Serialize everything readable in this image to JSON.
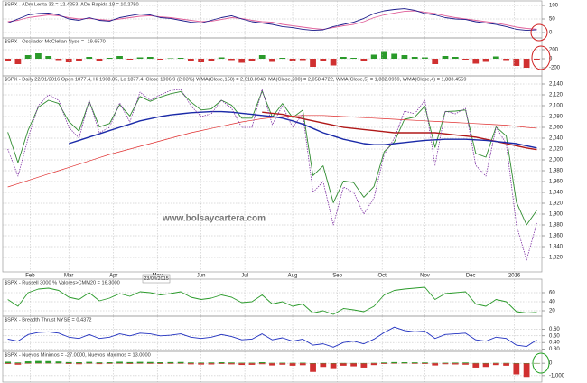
{
  "chart_data": [
    {
      "type": "line",
      "title": "$SPX - ADm Lenta 32 = 12.4253, ADn Rapida 18 = 10.2780",
      "ylim": [
        0,
        100
      ],
      "yticks": [
        100,
        50,
        0
      ],
      "grid": true,
      "series": [
        {
          "color": "#e0609a",
          "values": [
            40,
            45,
            55,
            60,
            65,
            62,
            55,
            50,
            52,
            48,
            45,
            50,
            55,
            60,
            62,
            58,
            55,
            50,
            45,
            40,
            42,
            48,
            55,
            52,
            45,
            40,
            38,
            30,
            25,
            20,
            15,
            12,
            18,
            25,
            30,
            40,
            55,
            65,
            72,
            78,
            80,
            75,
            70,
            62,
            55,
            50,
            45,
            40,
            35,
            28,
            20,
            15,
            12.4253
          ]
        },
        {
          "color": "#1a1a8a",
          "values": [
            35,
            50,
            65,
            70,
            72,
            65,
            50,
            45,
            55,
            45,
            42,
            55,
            62,
            68,
            65,
            55,
            52,
            45,
            38,
            35,
            45,
            55,
            62,
            50,
            40,
            35,
            30,
            22,
            18,
            12,
            8,
            10,
            22,
            30,
            38,
            52,
            70,
            80,
            85,
            88,
            82,
            70,
            65,
            55,
            50,
            48,
            40,
            35,
            30,
            22,
            12,
            8,
            10.278
          ]
        }
      ]
    },
    {
      "type": "bar",
      "title": "$SPX - Oscilador McClellan Nyse = -19.6570",
      "ylim": [
        -300,
        300
      ],
      "yticks": [
        200,
        0,
        -200
      ],
      "grid": true,
      "positive_color": "#2a9a2a",
      "negative_color": "#d03030",
      "series": [
        {
          "values": [
            -50,
            -120,
            80,
            120,
            60,
            -30,
            -80,
            -60,
            40,
            -40,
            20,
            60,
            -20,
            30,
            40,
            -20,
            10,
            20,
            -60,
            -80,
            -40,
            30,
            -30,
            -90,
            -40,
            80,
            -70,
            20,
            -60,
            -30,
            -180,
            -40,
            -150,
            40,
            20,
            -60,
            90,
            150,
            110,
            80,
            40,
            30,
            -120,
            60,
            40,
            -20,
            -110,
            -70,
            50,
            -30,
            -160,
            -200,
            -19.657
          ]
        }
      ]
    },
    {
      "type": "line",
      "title": "$SPX - Daily 22/01/2016 Open 1877.4, Hi 1908.85, Lo 1877.4, Close 1906.9 (2.03%) WMA(Close,150) = 2,018.8943, MA(Close,200) = 2,058.4722, WMA(Close,5) = 1,882.0959, WMA(Close,4) = 1,883.4559",
      "ylim": [
        1820,
        2140
      ],
      "yticks": [
        {
          "value": 2140,
          "label": "2,140"
        },
        {
          "value": 2120,
          "label": "2,120"
        },
        {
          "value": 2100,
          "label": "2,100"
        },
        {
          "value": 2080,
          "label": "2,080"
        },
        {
          "value": 2060,
          "label": "2,060"
        },
        {
          "value": 2040,
          "label": "2,040"
        },
        {
          "value": 2020,
          "label": "2,020"
        },
        {
          "value": 2000,
          "label": "2,000"
        },
        {
          "value": 1980,
          "label": "1,980"
        },
        {
          "value": 1960,
          "label": "1,960"
        },
        {
          "value": 1940,
          "label": "1,940"
        },
        {
          "value": 1920,
          "label": "1,920"
        },
        {
          "value": 1900,
          "label": "1,900"
        },
        {
          "value": 1880,
          "label": "1,880"
        },
        {
          "value": 1860,
          "label": "1,860"
        },
        {
          "value": 1840,
          "label": "1,840"
        },
        {
          "value": 1820,
          "label": "1,820"
        }
      ],
      "xticks": [
        {
          "value": 2.2,
          "label": "Feb"
        },
        {
          "value": 6,
          "label": "Mar"
        },
        {
          "value": 10.4,
          "label": "Apr"
        },
        {
          "value": 14.7,
          "label": "May"
        },
        {
          "value": 19,
          "label": "Jun"
        },
        {
          "value": 23.3,
          "label": "Jul"
        },
        {
          "value": 28,
          "label": "Aug"
        },
        {
          "value": 32.4,
          "label": "Sep"
        },
        {
          "value": 36.8,
          "label": "Oct"
        },
        {
          "value": 41,
          "label": "Nov"
        },
        {
          "value": 45.5,
          "label": "Dec"
        },
        {
          "value": 49.8,
          "label": "2016"
        }
      ],
      "grid": true,
      "watermark": "www.bolsaycartera.com",
      "cursor_label": "23/04/2015",
      "series": [
        {
          "color": "#2e8b2e",
          "values": [
            2051,
            1995,
            2055,
            2097,
            2110,
            2104,
            2071,
            2053,
            2108,
            2061,
            2067,
            2102,
            2081,
            2117,
            2108,
            2116,
            2122,
            2126,
            2107,
            2092,
            2094,
            2110,
            2101,
            2077,
            2077,
            2127,
            2079,
            2104,
            2078,
            2092,
            1971,
            1989,
            1921,
            1961,
            1958,
            1931,
            1951,
            2015,
            2033,
            2075,
            2079,
            2099,
            2023,
            2089,
            2090,
            2092,
            2012,
            2005,
            2061,
            2044,
            1922,
            1880,
            1906.9
          ]
        },
        {
          "color": "#b01818",
          "width": 1.4,
          "values": [
            null,
            null,
            null,
            null,
            null,
            null,
            null,
            null,
            null,
            null,
            null,
            null,
            null,
            null,
            null,
            null,
            null,
            null,
            null,
            null,
            null,
            null,
            null,
            null,
            null,
            2088,
            2086,
            2084,
            2080,
            2076,
            2072,
            2068,
            2064,
            2060,
            2058,
            2056,
            2054,
            2052,
            2050,
            2050,
            2050,
            2050,
            2050,
            2048,
            2046,
            2044,
            2042,
            2038,
            2034,
            2030,
            2026,
            2022,
            2018.8943
          ]
        },
        {
          "color": "#1a2aa8",
          "width": 1.4,
          "values": [
            null,
            null,
            null,
            null,
            null,
            null,
            2030,
            2036,
            2042,
            2048,
            2054,
            2060,
            2066,
            2072,
            2076,
            2080,
            2083,
            2085,
            2087,
            2088,
            2089,
            2089,
            2088,
            2086,
            2084,
            2082,
            2080,
            2077,
            2072,
            2066,
            2058,
            2050,
            2044,
            2038,
            2034,
            2030,
            2028,
            2028,
            2030,
            2032,
            2034,
            2036,
            2037,
            2038,
            2038,
            2038,
            2037,
            2036,
            2034,
            2032,
            2030,
            2026,
            2022
          ]
        },
        {
          "color": "#e03030",
          "width": 0.7,
          "values": [
            1950,
            1956,
            1962,
            1968,
            1974,
            1980,
            1986,
            1992,
            1998,
            2004,
            2010,
            2015,
            2020,
            2025,
            2030,
            2035,
            2040,
            2045,
            2050,
            2054,
            2058,
            2062,
            2066,
            2070,
            2073,
            2076,
            2078,
            2080,
            2081,
            2082,
            2082,
            2082,
            2081,
            2080,
            2079,
            2078,
            2077,
            2076,
            2075,
            2074,
            2073,
            2072,
            2071,
            2070,
            2069,
            2068,
            2067,
            2066,
            2065,
            2064,
            2062,
            2060,
            2058.4722
          ]
        },
        {
          "color": "#7a2aa0",
          "width": 0.8,
          "dashed": true,
          "values": [
            2020,
            1970,
            2040,
            2100,
            2120,
            2110,
            2060,
            2040,
            2110,
            2050,
            2060,
            2105,
            2070,
            2125,
            2110,
            2120,
            2128,
            2130,
            2100,
            2080,
            2085,
            2110,
            2095,
            2060,
            2060,
            2130,
            2065,
            2100,
            2060,
            2085,
            1940,
            1960,
            1880,
            1950,
            1940,
            1900,
            1930,
            2010,
            2040,
            2090,
            2085,
            2110,
            1990,
            2090,
            2085,
            2095,
            1990,
            1970,
            2060,
            2030,
            1880,
            1815,
            1883.4559
          ]
        }
      ]
    },
    {
      "type": "line",
      "title": "$SPX - Russell 3000 % Valores>CMM20 = 16.3000",
      "ylim": [
        10,
        70
      ],
      "yticks": [
        60,
        40,
        20
      ],
      "grid": true,
      "series": [
        {
          "color": "#2a9a2a",
          "values": [
            45,
            30,
            60,
            68,
            70,
            65,
            50,
            45,
            60,
            42,
            48,
            58,
            52,
            62,
            60,
            55,
            58,
            62,
            50,
            45,
            48,
            55,
            50,
            38,
            40,
            55,
            35,
            40,
            30,
            35,
            15,
            20,
            12,
            25,
            22,
            18,
            30,
            55,
            65,
            68,
            70,
            72,
            45,
            58,
            60,
            62,
            35,
            30,
            45,
            40,
            18,
            15,
            16.3
          ]
        }
      ]
    },
    {
      "type": "line",
      "title": "$SPX - Breadth Thrust NYSE = 0.4372",
      "ylim": [
        0.28,
        0.66
      ],
      "yticks": [
        {
          "value": 0.6,
          "label": "0.60"
        },
        {
          "value": 0.5,
          "label": "0.50"
        },
        {
          "value": 0.4,
          "label": "0.40"
        },
        {
          "value": 0.3,
          "label": "0.30"
        }
      ],
      "grid": true,
      "series": [
        {
          "color": "#2030c0",
          "values": [
            0.45,
            0.42,
            0.52,
            0.55,
            0.56,
            0.54,
            0.48,
            0.46,
            0.52,
            0.46,
            0.48,
            0.53,
            0.5,
            0.54,
            0.53,
            0.5,
            0.51,
            0.53,
            0.48,
            0.46,
            0.48,
            0.52,
            0.49,
            0.44,
            0.45,
            0.53,
            0.44,
            0.47,
            0.42,
            0.45,
            0.36,
            0.38,
            0.33,
            0.4,
            0.42,
            0.38,
            0.45,
            0.55,
            0.63,
            0.58,
            0.56,
            0.57,
            0.46,
            0.52,
            0.53,
            0.54,
            0.44,
            0.42,
            0.48,
            0.46,
            0.36,
            0.34,
            0.4372
          ]
        }
      ]
    },
    {
      "type": "bar",
      "title": "$SPX - Nuevos Minimos = -27.0000, Nuevos Maximos = 13.0000",
      "ylim": [
        -1300,
        300
      ],
      "yticks": [
        0,
        {
          "value": -1000,
          "label": "-1,000"
        }
      ],
      "grid": true,
      "series": [
        {
          "color": "#d03030",
          "values": [
            -60,
            -120,
            -40,
            -20,
            -15,
            -20,
            -60,
            -80,
            -40,
            -70,
            -50,
            -40,
            -60,
            -40,
            -50,
            -60,
            -50,
            -45,
            -90,
            -110,
            -100,
            -60,
            -90,
            -140,
            -130,
            -80,
            -180,
            -120,
            -200,
            -160,
            -700,
            -300,
            -400,
            -200,
            -250,
            -350,
            -150,
            -60,
            -40,
            -30,
            -50,
            -60,
            -180,
            -80,
            -100,
            -120,
            -350,
            -300,
            -150,
            -200,
            -900,
            -1100,
            -27
          ]
        },
        {
          "color": "#2a9a2a",
          "values": [
            120,
            60,
            150,
            180,
            170,
            140,
            90,
            80,
            110,
            70,
            80,
            120,
            90,
            110,
            100,
            80,
            90,
            100,
            60,
            50,
            60,
            80,
            60,
            40,
            40,
            80,
            30,
            40,
            30,
            40,
            10,
            15,
            10,
            20,
            20,
            15,
            30,
            60,
            90,
            80,
            70,
            60,
            30,
            40,
            50,
            60,
            20,
            15,
            30,
            25,
            5,
            8,
            13
          ]
        }
      ]
    }
  ]
}
